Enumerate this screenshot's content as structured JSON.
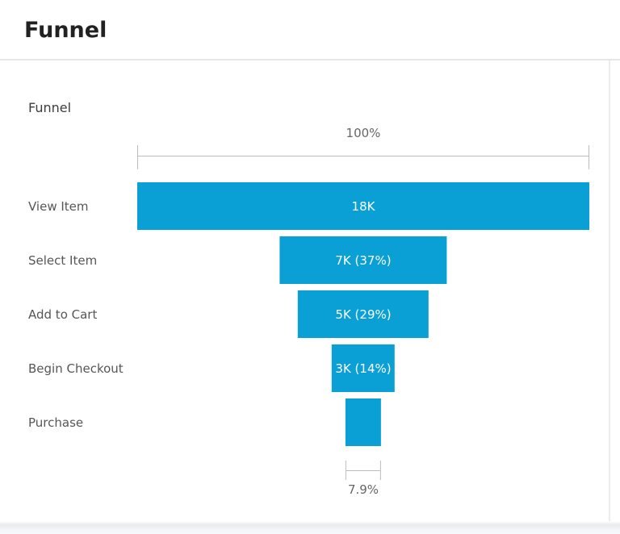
{
  "page": {
    "title": "Funnel"
  },
  "chart": {
    "title": "Funnel"
  },
  "chart_data": {
    "type": "funnel",
    "title": "Funnel",
    "bar_color": "#0aa0d5",
    "orientation": "horizontal-centered",
    "top_annotation": "100%",
    "bottom_annotation": "7.9%",
    "stages": [
      {
        "label": "View Item",
        "value_label": "18K",
        "percent_of_first": 100
      },
      {
        "label": "Select Item",
        "value_label": "7K (37%)",
        "percent_of_first": 37
      },
      {
        "label": "Add to Cart",
        "value_label": "5K (29%)",
        "percent_of_first": 29
      },
      {
        "label": "Begin Checkout",
        "value_label": "3K (14%)",
        "percent_of_first": 14
      },
      {
        "label": "Purchase",
        "value_label": "",
        "percent_of_first": 7.9
      }
    ]
  }
}
